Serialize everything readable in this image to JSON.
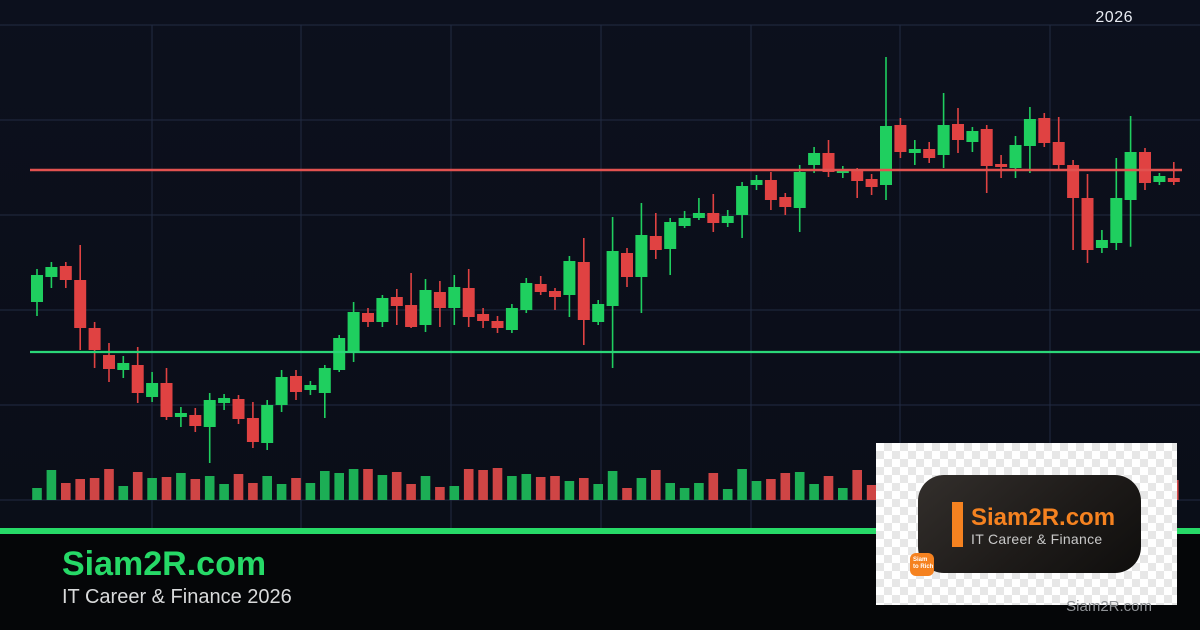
{
  "header": {
    "year_label": "2026"
  },
  "footer": {
    "brand": "Siam2R.com",
    "tagline": "IT Career & Finance 2026"
  },
  "badge_card": {
    "brand": "Siam2R.com",
    "tagline": "IT Career & Finance",
    "logo_line1": "Siam",
    "logo_line2": "to Rich"
  },
  "watermark": {
    "small_label": "Siam2R.com"
  },
  "colors": {
    "background": "#0b0f1a",
    "grid": "#222b42",
    "bull": "#1fcf5f",
    "bear": "#e04242",
    "volume_bull": "#1cae55",
    "volume_bear": "#cf4545",
    "support_line": "#2bd678",
    "resistance_line": "#e25250",
    "divider_green": "#27d967",
    "brand_green": "#26d967",
    "brand_orange": "#f58220"
  },
  "chart_data": {
    "type": "candlestick",
    "title": "",
    "xlabel": "",
    "ylabel": "",
    "top_right_label": "2026",
    "grid": true,
    "ylim": [
      0,
      125
    ],
    "candles_format": [
      "open",
      "high",
      "low",
      "close"
    ],
    "candles": [
      [
        54.5,
        62.75,
        51,
        61.25
      ],
      [
        60.75,
        64.5,
        58,
        63.25
      ],
      [
        63.5,
        64.5,
        58,
        60
      ],
      [
        60,
        68.75,
        42.5,
        48
      ],
      [
        48,
        49.5,
        38,
        42.5
      ],
      [
        41.25,
        44.25,
        34.5,
        37.75
      ],
      [
        37.5,
        41,
        35.5,
        39.25
      ],
      [
        38.75,
        43.25,
        29.25,
        31.75
      ],
      [
        30.75,
        37,
        29.5,
        34.25
      ],
      [
        34.25,
        38,
        25,
        25.75
      ],
      [
        25.75,
        28.25,
        23.25,
        26.75
      ],
      [
        26.25,
        28,
        22,
        23.5
      ],
      [
        23.25,
        31.75,
        14.25,
        30
      ],
      [
        29.25,
        31.5,
        27.5,
        30.5
      ],
      [
        30.25,
        31.25,
        24,
        25.25
      ],
      [
        25.5,
        29.5,
        18,
        19.5
      ],
      [
        19.25,
        30,
        17.5,
        28.75
      ],
      [
        28.75,
        37.5,
        27,
        35.75
      ],
      [
        36,
        37.5,
        30,
        32
      ],
      [
        32.5,
        34.75,
        31.25,
        33.75
      ],
      [
        31.75,
        38.75,
        25.5,
        38
      ],
      [
        37.5,
        46.25,
        37,
        45.5
      ],
      [
        41.75,
        54.5,
        39.5,
        52
      ],
      [
        51.75,
        53,
        48.25,
        49.5
      ],
      [
        49.5,
        56.25,
        48.25,
        55.5
      ],
      [
        55.75,
        57.75,
        48.75,
        53.5
      ],
      [
        53.75,
        61.75,
        48,
        48.25
      ],
      [
        48.75,
        60.25,
        47,
        57.5
      ],
      [
        57,
        59.75,
        48.25,
        53
      ],
      [
        53,
        61.25,
        48.75,
        58.25
      ],
      [
        58,
        62.75,
        48.25,
        50.75
      ],
      [
        51.5,
        53,
        48,
        49.75
      ],
      [
        49.75,
        51,
        46.75,
        48
      ],
      [
        47.5,
        54,
        46.75,
        53
      ],
      [
        52.5,
        60.5,
        51.75,
        59.25
      ],
      [
        59,
        61,
        56.25,
        57
      ],
      [
        57.25,
        58,
        52.5,
        55.75
      ],
      [
        56.25,
        66,
        50.75,
        64.75
      ],
      [
        64.5,
        70.5,
        43.75,
        50
      ],
      [
        49.5,
        55,
        48.75,
        54
      ],
      [
        53.5,
        75.75,
        38,
        67.25
      ],
      [
        66.75,
        68,
        58.25,
        60.75
      ],
      [
        60.75,
        79.25,
        51.75,
        71.25
      ],
      [
        71,
        76.75,
        65.25,
        67.5
      ],
      [
        67.75,
        75.5,
        61.25,
        74.5
      ],
      [
        73.5,
        77.25,
        73,
        75.5
      ],
      [
        75.5,
        80.5,
        75,
        76.75
      ],
      [
        76.75,
        81.5,
        72,
        74.25
      ],
      [
        74.25,
        77.5,
        73.25,
        76
      ],
      [
        76.25,
        84.5,
        70.5,
        83.5
      ],
      [
        83.75,
        86.25,
        82.5,
        85
      ],
      [
        85,
        87,
        77.5,
        80
      ],
      [
        80.75,
        81.75,
        76.25,
        78.25
      ],
      [
        78,
        88.75,
        72,
        87
      ],
      [
        88.75,
        93.25,
        86.75,
        91.75
      ],
      [
        91.75,
        95,
        85.75,
        87
      ],
      [
        86.75,
        88.5,
        85.5,
        87.25
      ],
      [
        87.25,
        88,
        80.5,
        84.75
      ],
      [
        85.25,
        86.5,
        81.25,
        83.25
      ],
      [
        83.75,
        115.75,
        80,
        98.5
      ],
      [
        98.75,
        100.5,
        90.5,
        92
      ],
      [
        91.75,
        95,
        88.75,
        92.75
      ],
      [
        92.75,
        94.5,
        89.25,
        90.5
      ],
      [
        91.25,
        106.75,
        88,
        98.75
      ],
      [
        99,
        103,
        91.75,
        95
      ],
      [
        94.5,
        98.25,
        92,
        97.25
      ],
      [
        97.75,
        98.75,
        81.75,
        88.5
      ],
      [
        89,
        91.25,
        85.5,
        88.25
      ],
      [
        88,
        96,
        85.5,
        93.75
      ],
      [
        93.5,
        103.25,
        86.75,
        100.25
      ],
      [
        100.5,
        101.75,
        93.25,
        94.25
      ],
      [
        94.5,
        100.75,
        87.5,
        88.75
      ],
      [
        88.75,
        90,
        67.5,
        80.5
      ],
      [
        80.5,
        86.5,
        64.25,
        67.5
      ],
      [
        68,
        72.5,
        66.75,
        70
      ],
      [
        69.25,
        90.5,
        67.5,
        80.5
      ],
      [
        80,
        101,
        68.3,
        92
      ],
      [
        92,
        93,
        82.5,
        84.25
      ],
      [
        84.5,
        86.75,
        83.75,
        86
      ],
      [
        85.5,
        89.5,
        83.75,
        84.5
      ]
    ],
    "volume": [
      12,
      30,
      17,
      21,
      22,
      31,
      14,
      28,
      22,
      23,
      27,
      21,
      24,
      16,
      26,
      17,
      24,
      16,
      22,
      17,
      29,
      27,
      31,
      31,
      25,
      28,
      16,
      24,
      13,
      14,
      31,
      30,
      32,
      24,
      26,
      23,
      24,
      19,
      22,
      16,
      29,
      12,
      22,
      30,
      17,
      12,
      17,
      27,
      11,
      31,
      19,
      21,
      27,
      28,
      16,
      24,
      12,
      30,
      15,
      25,
      18,
      22,
      14,
      27,
      20,
      16,
      24,
      19,
      28,
      15,
      22,
      26,
      30,
      12,
      20,
      24,
      17,
      14,
      17,
      20
    ],
    "price_lines": [
      {
        "price": 87.5,
        "role": "resistance"
      },
      {
        "price": 42,
        "role": "support"
      }
    ],
    "legend_position": "none"
  }
}
